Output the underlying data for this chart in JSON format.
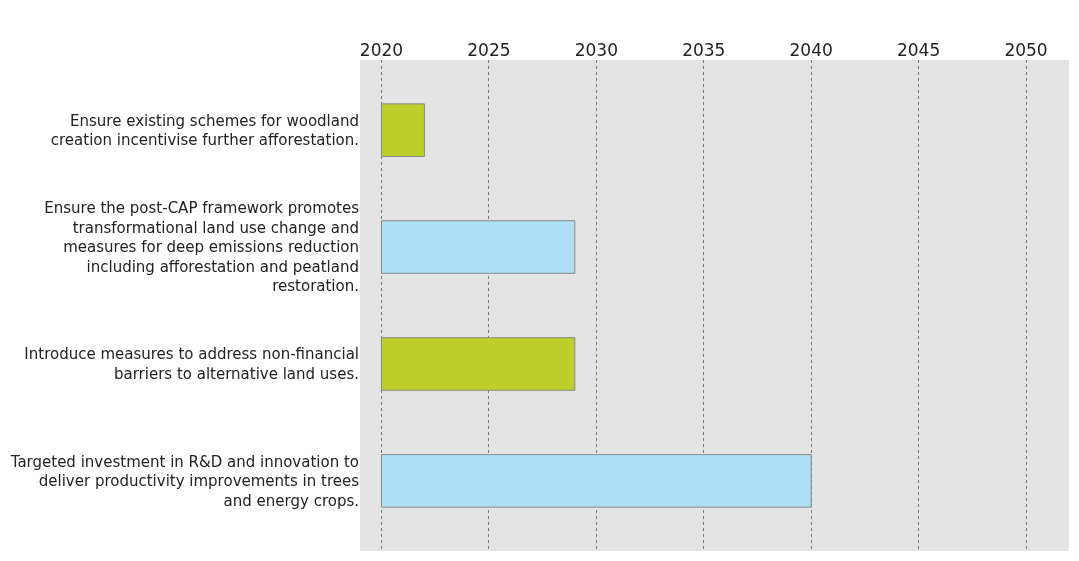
{
  "chart_data": {
    "type": "bar",
    "orientation": "horizontal",
    "categories": [
      "Ensure existing schemes for woodland creation incentivise further afforestation.",
      "Ensure the post-CAP framework promotes transformational land use change and measures for deep emissions reduction including afforestation and peatland restoration.",
      "Introduce measures to address non-financial barriers to alternative land uses.",
      "Targeted investment in R&D and innovation to deliver productivity improvements in trees and energy crops."
    ],
    "base": [
      2020,
      2020,
      2020,
      2020
    ],
    "values": [
      2,
      9,
      9,
      20
    ],
    "colors": [
      "#bccf2a",
      "#aedff7",
      "#bccf2a",
      "#aedff7"
    ],
    "xlim": [
      2019,
      2052
    ],
    "xticks": [
      2020,
      2025,
      2030,
      2035,
      2040,
      2045,
      2050
    ],
    "grid": "x"
  }
}
